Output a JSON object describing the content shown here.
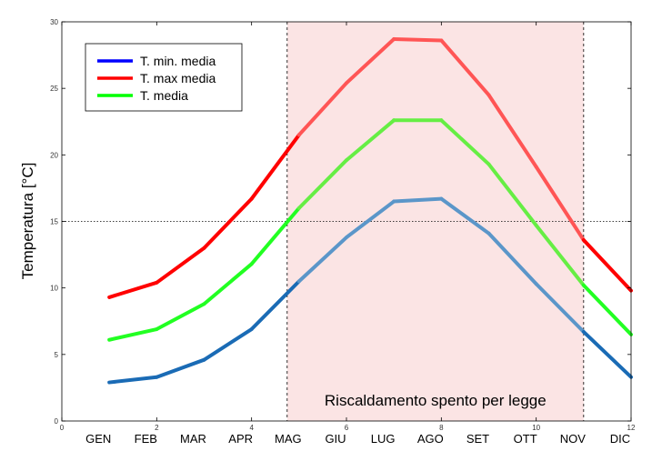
{
  "chart_data": {
    "type": "line",
    "ylabel": "Temperatura  [°C]",
    "xlim": [
      0,
      12
    ],
    "ylim": [
      0,
      30
    ],
    "x_ticks": [
      0,
      2,
      4,
      6,
      8,
      10,
      12
    ],
    "y_ticks": [
      0,
      5,
      10,
      15,
      20,
      25,
      30
    ],
    "months": [
      "GEN",
      "FEB",
      "MAR",
      "APR",
      "MAG",
      "GIU",
      "LUG",
      "AGO",
      "SET",
      "OTT",
      "NOV",
      "DIC"
    ],
    "month_x": [
      1,
      2,
      3,
      4,
      5,
      6,
      7,
      8,
      9,
      10,
      11,
      12
    ],
    "legend_position": "top-left",
    "grid": false,
    "reference_line_y": 15,
    "shaded_region": {
      "x_start": 4.75,
      "x_end": 11.0,
      "color": "#fbe4e4",
      "label": "Riscaldamento spento per legge"
    },
    "series": [
      {
        "name": "T. min. media",
        "legend_color": "#0000ff",
        "colors": [
          "#1a6bb5",
          "#5b96c9"
        ],
        "x": [
          1,
          2,
          3,
          4,
          5,
          6,
          7,
          8,
          9,
          10,
          11,
          12
        ],
        "values": [
          2.9,
          3.3,
          4.6,
          6.9,
          10.5,
          13.8,
          16.5,
          16.7,
          14.1,
          10.3,
          6.7,
          3.3
        ]
      },
      {
        "name": "T. max media",
        "legend_color": "#ff0000",
        "colors": [
          "#ff0000",
          "#ff5555"
        ],
        "x": [
          1,
          2,
          3,
          4,
          5,
          6,
          7,
          8,
          9,
          10,
          11,
          12
        ],
        "values": [
          9.3,
          10.4,
          13.0,
          16.7,
          21.5,
          25.4,
          28.7,
          28.6,
          24.5,
          19.1,
          13.6,
          9.8
        ]
      },
      {
        "name": "T. media",
        "legend_color": "#00ff00",
        "colors": [
          "#22ff22",
          "#66ee44"
        ],
        "x": [
          1,
          2,
          3,
          4,
          5,
          6,
          7,
          8,
          9,
          10,
          11,
          12
        ],
        "values": [
          6.1,
          6.9,
          8.8,
          11.8,
          16.0,
          19.6,
          22.6,
          22.6,
          19.3,
          14.7,
          10.2,
          6.5
        ]
      }
    ]
  }
}
